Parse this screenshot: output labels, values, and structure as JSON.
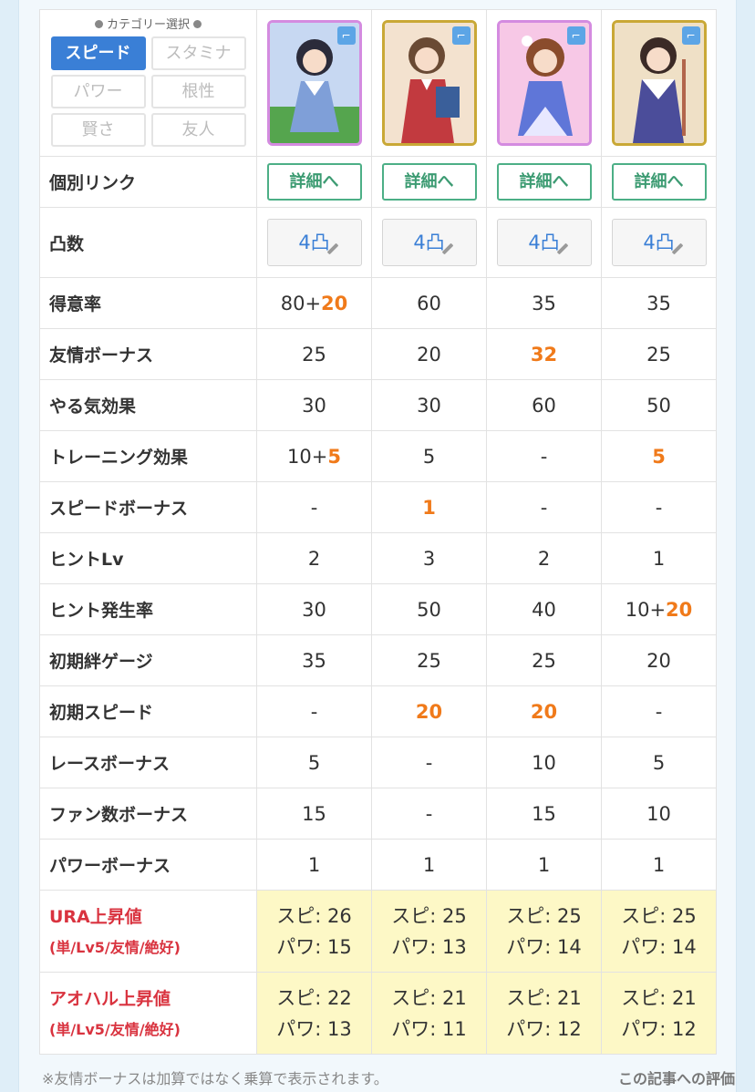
{
  "category": {
    "title": "カテゴリー選択",
    "buttons": [
      {
        "label": "スピード",
        "active": true
      },
      {
        "label": "スタミナ",
        "active": false
      },
      {
        "label": "パワー",
        "active": false
      },
      {
        "label": "根性",
        "active": false
      },
      {
        "label": "賢さ",
        "active": false
      },
      {
        "label": "友人",
        "active": false
      }
    ]
  },
  "cards": [
    {
      "frame": "pink",
      "colors": [
        "#c7d8f2",
        "#7f9fd8",
        "#55a54e"
      ]
    },
    {
      "frame": "gold",
      "colors": [
        "#f3e2cf",
        "#c23a3f",
        "#6a4a34"
      ]
    },
    {
      "frame": "pink",
      "colors": [
        "#f7c8e6",
        "#5f76d8",
        "#8a4c2c"
      ]
    },
    {
      "frame": "gold",
      "colors": [
        "#efe0c6",
        "#4b4d9a",
        "#b2654b"
      ]
    }
  ],
  "link_row": {
    "label": "個別リンク",
    "button": "詳細へ"
  },
  "totsu_row": {
    "label": "凸数",
    "value": "4凸"
  },
  "rows": [
    {
      "label": "得意率",
      "values": [
        [
          "80+",
          "20"
        ],
        [
          "60",
          ""
        ],
        [
          "35",
          ""
        ],
        [
          "35",
          ""
        ]
      ]
    },
    {
      "label": "友情ボーナス",
      "values": [
        [
          "25",
          ""
        ],
        [
          "20",
          ""
        ],
        [
          "",
          "32"
        ],
        [
          "25",
          ""
        ]
      ]
    },
    {
      "label": "やる気効果",
      "values": [
        [
          "30",
          ""
        ],
        [
          "30",
          ""
        ],
        [
          "60",
          ""
        ],
        [
          "50",
          ""
        ]
      ]
    },
    {
      "label": "トレーニング効果",
      "values": [
        [
          "10+",
          "5"
        ],
        [
          "5",
          ""
        ],
        [
          "-",
          ""
        ],
        [
          "",
          "5"
        ]
      ]
    },
    {
      "label": "スピードボーナス",
      "values": [
        [
          "-",
          ""
        ],
        [
          "",
          "1"
        ],
        [
          "-",
          ""
        ],
        [
          "-",
          ""
        ]
      ]
    },
    {
      "label": "ヒントLv",
      "values": [
        [
          "2",
          ""
        ],
        [
          "3",
          ""
        ],
        [
          "2",
          ""
        ],
        [
          "1",
          ""
        ]
      ]
    },
    {
      "label": "ヒント発生率",
      "values": [
        [
          "30",
          ""
        ],
        [
          "50",
          ""
        ],
        [
          "40",
          ""
        ],
        [
          "10+",
          "20"
        ]
      ]
    },
    {
      "label": "初期絆ゲージ",
      "values": [
        [
          "35",
          ""
        ],
        [
          "25",
          ""
        ],
        [
          "25",
          ""
        ],
        [
          "20",
          ""
        ]
      ]
    },
    {
      "label": "初期スピード",
      "values": [
        [
          "-",
          ""
        ],
        [
          "",
          "20"
        ],
        [
          "",
          "20"
        ],
        [
          "-",
          ""
        ]
      ]
    },
    {
      "label": "レースボーナス",
      "values": [
        [
          "5",
          ""
        ],
        [
          "-",
          ""
        ],
        [
          "10",
          ""
        ],
        [
          "5",
          ""
        ]
      ]
    },
    {
      "label": "ファン数ボーナス",
      "values": [
        [
          "15",
          ""
        ],
        [
          "-",
          ""
        ],
        [
          "15",
          ""
        ],
        [
          "10",
          ""
        ]
      ]
    },
    {
      "label": "パワーボーナス",
      "values": [
        [
          "1",
          ""
        ],
        [
          "1",
          ""
        ],
        [
          "1",
          ""
        ],
        [
          "1",
          ""
        ]
      ]
    }
  ],
  "gains": [
    {
      "label": "URA上昇値",
      "sub": "(単/Lv5/友情/絶好)",
      "values": [
        [
          "スピ: 26",
          "パワ: 15"
        ],
        [
          "スピ: 25",
          "パワ: 13"
        ],
        [
          "スピ: 25",
          "パワ: 14"
        ],
        [
          "スピ: 25",
          "パワ: 14"
        ]
      ]
    },
    {
      "label": "アオハル上昇値",
      "sub": "(単/Lv5/友情/絶好)",
      "values": [
        [
          "スピ: 22",
          "パワ: 13"
        ],
        [
          "スピ: 21",
          "パワ: 11"
        ],
        [
          "スピ: 21",
          "パワ: 12"
        ],
        [
          "スピ: 21",
          "パワ: 12"
        ]
      ]
    }
  ],
  "footnote": "※友情ボーナスは加算ではなく乗算で表示されます。",
  "eval_link": "この記事への評価"
}
